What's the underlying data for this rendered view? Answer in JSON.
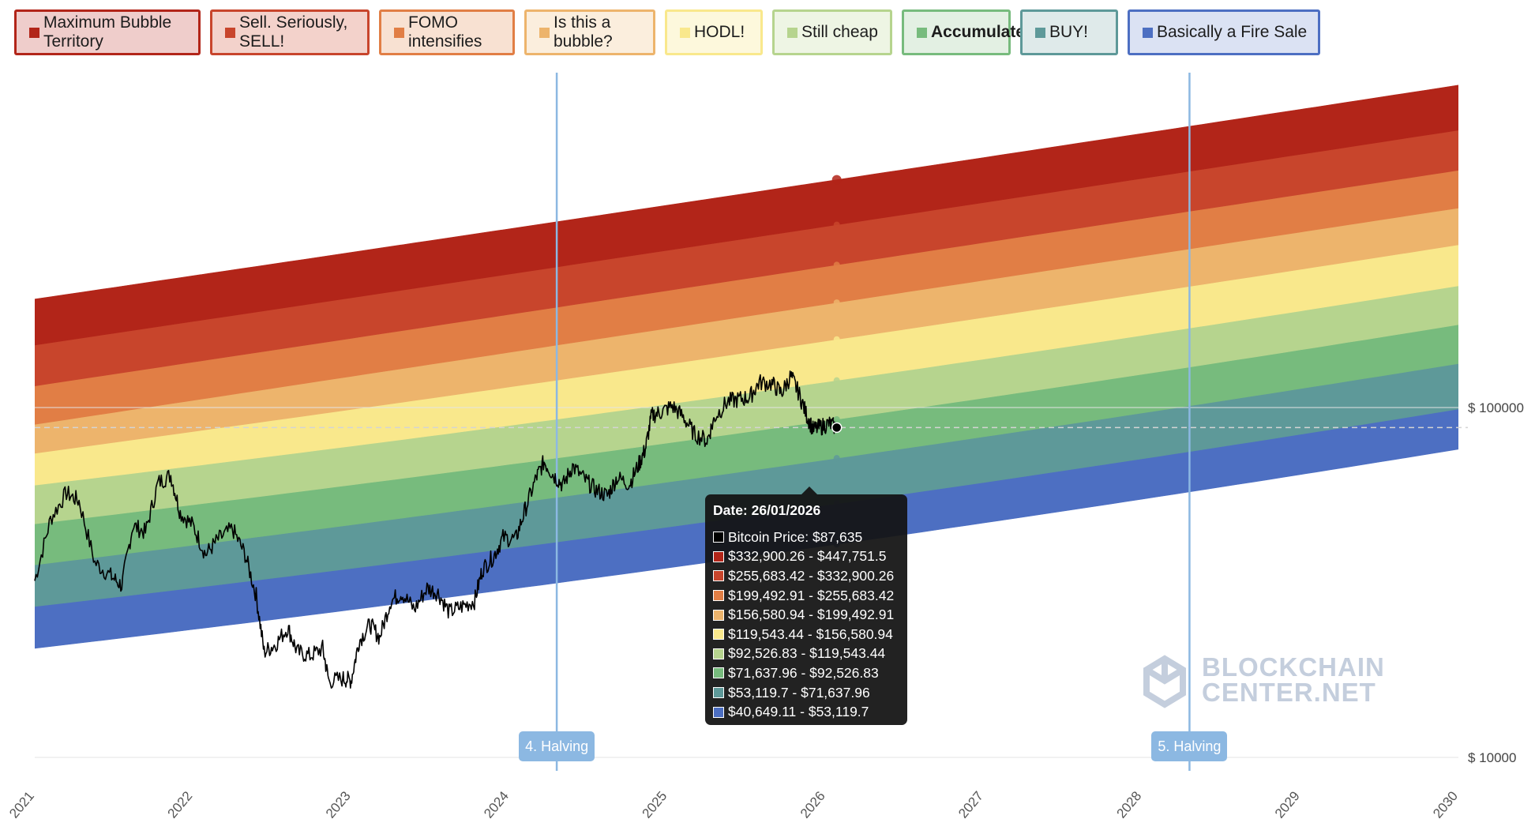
{
  "legend": [
    {
      "label": "Maximum Bubble Territory",
      "color": "#b22519",
      "bg": "#efcdcb",
      "bold": false
    },
    {
      "label": "Sell. Seriously, SELL!",
      "color": "#c8452c",
      "bg": "#f3d2cb",
      "bold": false
    },
    {
      "label": "FOMO intensifies",
      "color": "#e17e45",
      "bg": "#f8e1d2",
      "bold": false
    },
    {
      "label": "Is this a bubble?",
      "color": "#edb46c",
      "bg": "#fbeedd",
      "bold": false
    },
    {
      "label": "HODL!",
      "color": "#f9e88c",
      "bg": "#fdf8dc",
      "bold": false
    },
    {
      "label": "Still cheap",
      "color": "#b6d48e",
      "bg": "#eef5e4",
      "bold": false
    },
    {
      "label": "Accumulate",
      "color": "#77bb7d",
      "bg": "#e3f0e3",
      "bold": true
    },
    {
      "label": "BUY!",
      "color": "#5e9999",
      "bg": "#dfeaea",
      "bold": false
    },
    {
      "label": "Basically a Fire Sale",
      "color": "#4d6fc2",
      "bg": "#dbe2f3",
      "bold": false
    }
  ],
  "halvings": [
    {
      "label": "4. Halving",
      "date": 2024.3
    },
    {
      "label": "5. Halving",
      "date": 2028.3
    }
  ],
  "tooltip": {
    "date": "Date: 26/01/2026",
    "rows": [
      {
        "text": "Bitcoin Price: $87,635",
        "color": "#000000"
      },
      {
        "text": "$332,900.26 - $447,751.5",
        "color": "#b22519"
      },
      {
        "text": "$255,683.42 - $332,900.26",
        "color": "#c8452c"
      },
      {
        "text": "$199,492.91 - $255,683.42",
        "color": "#e17e45"
      },
      {
        "text": "$156,580.94 - $199,492.91",
        "color": "#edb46c"
      },
      {
        "text": "$119,543.44 - $156,580.94",
        "color": "#f9e88c"
      },
      {
        "text": "$92,526.83 - $119,543.44",
        "color": "#b6d48e"
      },
      {
        "text": "$71,637.96 - $92,526.83",
        "color": "#77bb7d"
      },
      {
        "text": "$53,119.7 - $71,637.96",
        "color": "#5e9999"
      },
      {
        "text": "$40,649.11 - $53,119.7",
        "color": "#4d6fc2"
      }
    ]
  },
  "watermark": {
    "line1": "BLOCKCHAIN",
    "line2": "CENTER.NET"
  },
  "chart_data": {
    "type": "area",
    "x_ticks": [
      "2021",
      "2022",
      "2023",
      "2024",
      "2025",
      "2026",
      "2027",
      "2028",
      "2029",
      "2030"
    ],
    "xlim": [
      2021,
      2030
    ],
    "y_ticks": [
      {
        "value": 100000,
        "label": "$ 100000"
      },
      {
        "value": 10000,
        "label": "$ 10000"
      }
    ],
    "y_scale": "log",
    "ylim_approx": [
      9600,
      1000000
    ],
    "current_price_line": 87635,
    "band_boundaries": [
      {
        "date": 2021.0,
        "values": [
          20500,
          27000,
          35500,
          46500,
          60000,
          74000,
          89500
        ]
      },
      {
        "date": 2026.07,
        "values": [
          40649.11,
          53119.7,
          71637.96,
          92526.83,
          119543.44,
          156580.94,
          199492.91,
          255683.42,
          332900.26,
          447751.5
        ]
      },
      {
        "date": 2030.0,
        "values": [
          76000,
          99000,
          133500,
          172500,
          222800,
          291800,
          371800,
          476500,
          620400,
          834400
        ]
      }
    ],
    "band_colors": [
      "#4d6fc2",
      "#5e9999",
      "#77bb7d",
      "#b6d48e",
      "#f9e88c",
      "#edb46c",
      "#e17e45",
      "#c8452c",
      "#b22519"
    ],
    "series": [
      {
        "name": "Bitcoin Price",
        "color": "#000000",
        "points": [
          [
            2021.0,
            32000
          ],
          [
            2021.1,
            48000
          ],
          [
            2021.2,
            57000
          ],
          [
            2021.28,
            54000
          ],
          [
            2021.38,
            36000
          ],
          [
            2021.48,
            33000
          ],
          [
            2021.55,
            31000
          ],
          [
            2021.62,
            46000
          ],
          [
            2021.7,
            44000
          ],
          [
            2021.78,
            61000
          ],
          [
            2021.86,
            64000
          ],
          [
            2021.92,
            50000
          ],
          [
            2022.0,
            46000
          ],
          [
            2022.08,
            38000
          ],
          [
            2022.16,
            42000
          ],
          [
            2022.25,
            45000
          ],
          [
            2022.33,
            38000
          ],
          [
            2022.4,
            29000
          ],
          [
            2022.45,
            20000
          ],
          [
            2022.52,
            21000
          ],
          [
            2022.6,
            23500
          ],
          [
            2022.66,
            20000
          ],
          [
            2022.74,
            19500
          ],
          [
            2022.82,
            20500
          ],
          [
            2022.86,
            16500
          ],
          [
            2022.95,
            16800
          ],
          [
            2023.0,
            16600
          ],
          [
            2023.05,
            21500
          ],
          [
            2023.12,
            24000
          ],
          [
            2023.18,
            22000
          ],
          [
            2023.25,
            28000
          ],
          [
            2023.32,
            29500
          ],
          [
            2023.4,
            26500
          ],
          [
            2023.48,
            30500
          ],
          [
            2023.55,
            29500
          ],
          [
            2023.62,
            26000
          ],
          [
            2023.7,
            27000
          ],
          [
            2023.78,
            28000
          ],
          [
            2023.83,
            34500
          ],
          [
            2023.9,
            37500
          ],
          [
            2023.96,
            42500
          ],
          [
            2024.04,
            42000
          ],
          [
            2024.1,
            51000
          ],
          [
            2024.17,
            63000
          ],
          [
            2024.22,
            70000
          ],
          [
            2024.28,
            64000
          ],
          [
            2024.34,
            60000
          ],
          [
            2024.4,
            68000
          ],
          [
            2024.48,
            62000
          ],
          [
            2024.55,
            58000
          ],
          [
            2024.62,
            56000
          ],
          [
            2024.68,
            63000
          ],
          [
            2024.76,
            60500
          ],
          [
            2024.82,
            69000
          ],
          [
            2024.86,
            76000
          ],
          [
            2024.9,
            95000
          ],
          [
            2024.96,
            97000
          ],
          [
            2025.03,
            101000
          ],
          [
            2025.1,
            94000
          ],
          [
            2025.17,
            84000
          ],
          [
            2025.25,
            80500
          ],
          [
            2025.3,
            94000
          ],
          [
            2025.38,
            104000
          ],
          [
            2025.45,
            105500
          ],
          [
            2025.52,
            107000
          ],
          [
            2025.58,
            118000
          ],
          [
            2025.66,
            117000
          ],
          [
            2025.72,
            110000
          ],
          [
            2025.78,
            123000
          ],
          [
            2025.83,
            110000
          ],
          [
            2025.88,
            95000
          ],
          [
            2025.92,
            86500
          ],
          [
            2025.97,
            88000
          ],
          [
            2026.02,
            90000
          ],
          [
            2026.07,
            87635
          ]
        ]
      }
    ],
    "annotations": [
      "4. Halving",
      "5. Halving"
    ]
  }
}
